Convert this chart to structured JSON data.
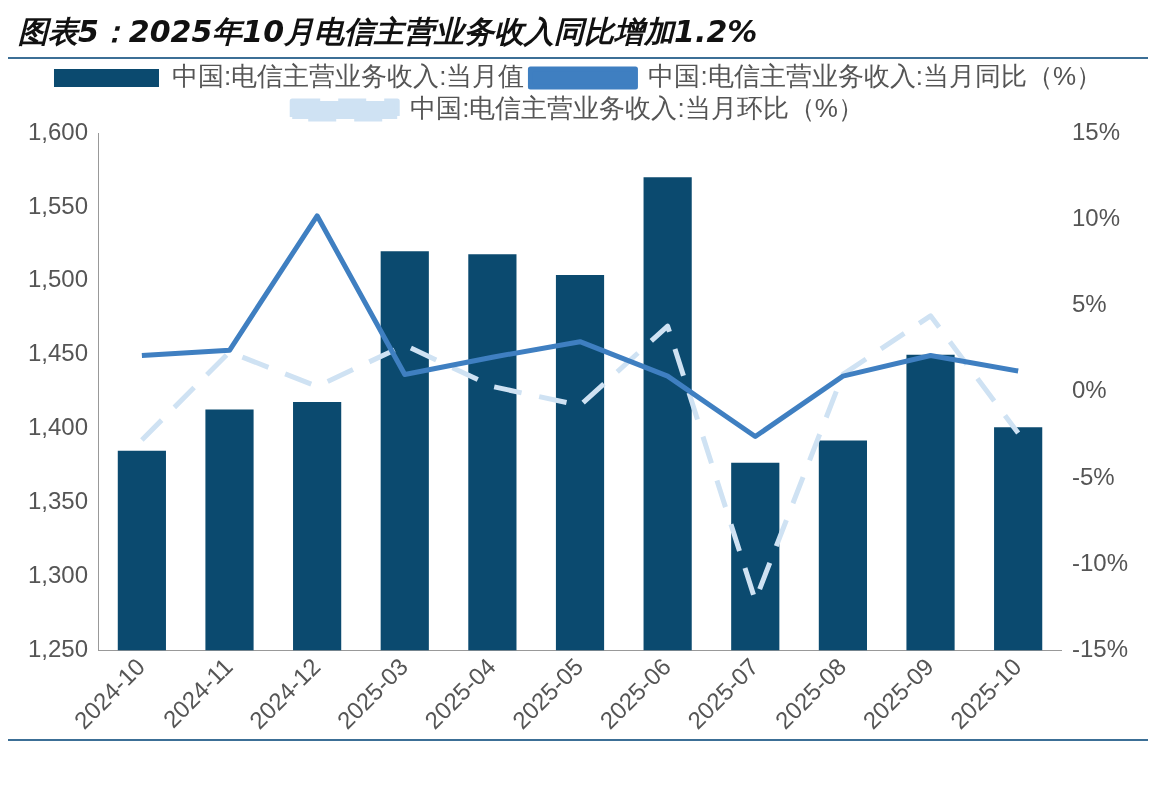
{
  "chart_data": {
    "type": "bar",
    "title": "图表5：2025年10月电信主营业务收入同比增加1.2%",
    "categories": [
      "2024-10",
      "2024-11",
      "2024-12",
      "2025-03",
      "2025-04",
      "2025-05",
      "2025-06",
      "2025-07",
      "2025-08",
      "2025-09",
      "2025-10"
    ],
    "series": [
      {
        "name": "中国:电信主营业务收入:当月值",
        "color": "#0b4a6f",
        "values": [
          1385,
          1413,
          1418,
          1520,
          1518,
          1504,
          1570,
          1377,
          1392,
          1450,
          1401
        ]
      },
      {
        "type": "line",
        "name": "中国:电信主营业务收入:当月同比（%）",
        "color": "#3f7fc1",
        "axis": "y2",
        "line_style": "solid",
        "values": [
          2.1,
          2.4,
          10.2,
          1.0,
          2.0,
          2.9,
          0.9,
          -2.6,
          0.9,
          2.1,
          1.2
        ]
      },
      {
        "type": "line",
        "name": "中国:电信主营业务收入:当月环比（%）",
        "color": "#cfe2f3",
        "axis": "y2",
        "line_style": "dashed",
        "values": [
          -2.8,
          2.3,
          0.3,
          2.7,
          0.3,
          -0.8,
          3.8,
          -12.1,
          1.0,
          4.4,
          -2.4
        ]
      }
    ],
    "ylim": [
      1250,
      1600
    ],
    "yticks": [
      {
        "value": 1250,
        "label": "1,250"
      },
      {
        "value": 1300,
        "label": "1,300"
      },
      {
        "value": 1350,
        "label": "1,350"
      },
      {
        "value": 1400,
        "label": "1,400"
      },
      {
        "value": 1450,
        "label": "1,450"
      },
      {
        "value": 1500,
        "label": "1,500"
      },
      {
        "value": 1550,
        "label": "1,550"
      },
      {
        "value": 1600,
        "label": "1,600"
      }
    ],
    "y2lim": [
      -15,
      15
    ],
    "y2ticks": [
      {
        "value": -15,
        "label": "-15%"
      },
      {
        "value": -10,
        "label": "-10%"
      },
      {
        "value": -5,
        "label": "-5%"
      },
      {
        "value": 0,
        "label": "0%"
      },
      {
        "value": 5,
        "label": "5%"
      },
      {
        "value": 10,
        "label": "10%"
      },
      {
        "value": 15,
        "label": "15%"
      }
    ],
    "grid": false,
    "legend": "top",
    "marker": "none"
  }
}
